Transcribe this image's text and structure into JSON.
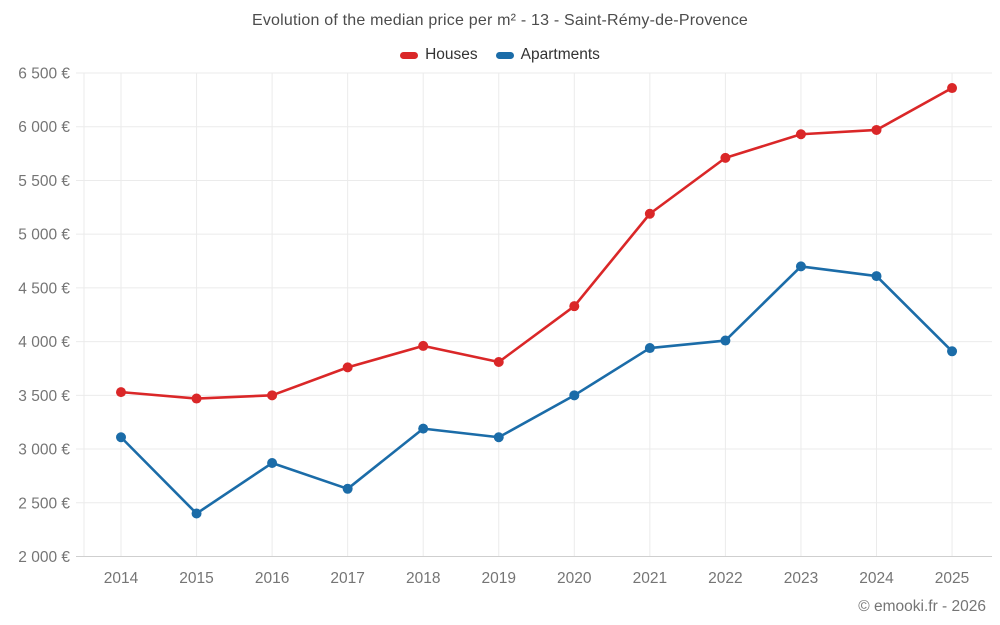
{
  "header": {
    "title": "Evolution of the median price per m² - 13 - Saint-Rémy-de-Provence"
  },
  "watermark": "© emooki.fr - 2026",
  "colors": {
    "houses": "#da2728",
    "apartments": "#1b6ca8",
    "grid": "#ebebeb",
    "axis_line": "#cfcfcf",
    "tick_text": "#757575",
    "title_text": "#4c4c4c",
    "legend_text": "#333333"
  },
  "chart_data": {
    "type": "line",
    "title": "Evolution of the median price per m² - 13 - Saint-Rémy-de-Provence",
    "x": [
      "2014",
      "2015",
      "2016",
      "2017",
      "2018",
      "2019",
      "2020",
      "2021",
      "2022",
      "2023",
      "2024",
      "2025"
    ],
    "series": [
      {
        "name": "Houses",
        "color": "#da2728",
        "values": [
          3530,
          3470,
          3500,
          3760,
          3960,
          3810,
          4330,
          5190,
          5710,
          5930,
          5970,
          6360
        ]
      },
      {
        "name": "Apartments",
        "color": "#1b6ca8",
        "values": [
          3110,
          2400,
          2870,
          2630,
          3190,
          3110,
          3500,
          3940,
          4010,
          4700,
          4610,
          3910
        ]
      }
    ],
    "xlabel": "",
    "ylabel": "",
    "ylim": [
      2000,
      6500
    ],
    "ytick_step": 500,
    "y_ticks": [
      {
        "value": 6500,
        "label": "6 500 €"
      },
      {
        "value": 6000,
        "label": "6 000 €"
      },
      {
        "value": 5500,
        "label": "5 500 €"
      },
      {
        "value": 5000,
        "label": "5 000 €"
      },
      {
        "value": 4500,
        "label": "4 500 €"
      },
      {
        "value": 4000,
        "label": "4 000 €"
      },
      {
        "value": 3500,
        "label": "3 500 €"
      },
      {
        "value": 3000,
        "label": "3 000 €"
      },
      {
        "value": 2500,
        "label": "2 500 €"
      },
      {
        "value": 2000,
        "label": "2 000 €"
      }
    ],
    "grid": true,
    "legend_position": "top"
  }
}
